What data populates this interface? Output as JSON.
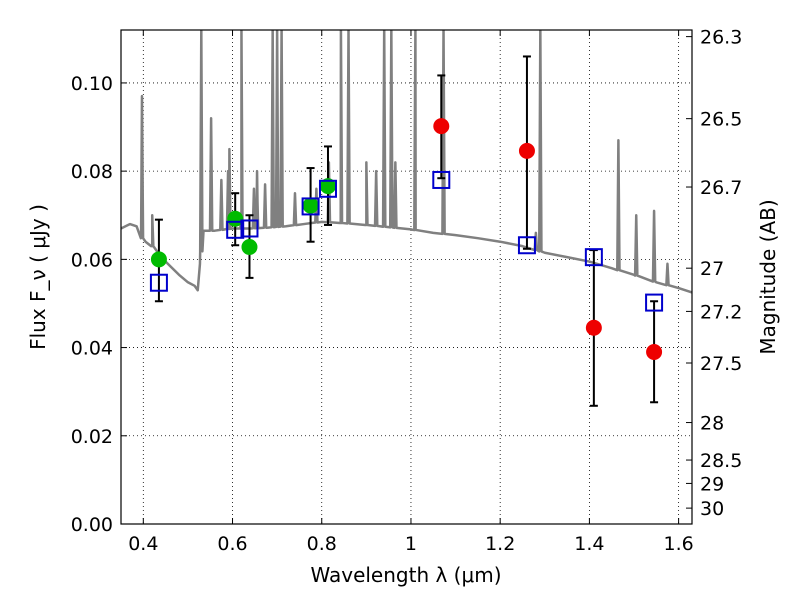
{
  "chart_data": {
    "type": "scatter",
    "xlabel": "Wavelength  λ (μm)",
    "ylabel": "Flux  F_ν  ( μJy )",
    "ylabel_right": "Magnitude (AB)",
    "xlim": [
      0.35,
      1.63
    ],
    "ylim": [
      0.0,
      0.112
    ],
    "grid": true,
    "x_ticks": [
      0.4,
      0.6,
      0.8,
      1.0,
      1.2,
      1.4,
      1.6
    ],
    "x_tick_labels": [
      "0.4",
      "0.6",
      "0.8",
      "1",
      "1.2",
      "1.4",
      "1.6"
    ],
    "y_ticks": [
      0.0,
      0.02,
      0.04,
      0.06,
      0.08,
      0.1
    ],
    "y_tick_labels": [
      "0.00",
      "0.02",
      "0.04",
      "0.06",
      "0.08",
      "0.10"
    ],
    "right_ticks": [
      {
        "label": "26.3",
        "flux": 0.1105
      },
      {
        "label": "26.5",
        "flux": 0.0919
      },
      {
        "label": "26.7",
        "flux": 0.0764
      },
      {
        "label": "27",
        "flux": 0.058
      },
      {
        "label": "27.2",
        "flux": 0.0482
      },
      {
        "label": "27.5",
        "flux": 0.0365
      },
      {
        "label": "28",
        "flux": 0.023
      },
      {
        "label": "28.5",
        "flux": 0.0145
      },
      {
        "label": "29",
        "flux": 0.0092
      },
      {
        "label": "30",
        "flux": 0.0036
      }
    ],
    "series": [
      {
        "marker": "circle",
        "color": "#00bb00",
        "points": [
          {
            "x": 0.435,
            "y": 0.06,
            "err_lo": 0.0095,
            "err_hi": 0.009
          },
          {
            "x": 0.606,
            "y": 0.0692,
            "err_lo": 0.006,
            "err_hi": 0.0058
          },
          {
            "x": 0.638,
            "y": 0.0628,
            "err_lo": 0.007,
            "err_hi": 0.0072
          },
          {
            "x": 0.775,
            "y": 0.0722,
            "err_lo": 0.0082,
            "err_hi": 0.0085
          },
          {
            "x": 0.814,
            "y": 0.0766,
            "err_lo": 0.0088,
            "err_hi": 0.009
          }
        ]
      },
      {
        "marker": "circle",
        "color": "#ee0000",
        "points": [
          {
            "x": 1.068,
            "y": 0.0902,
            "err_lo": 0.0118,
            "err_hi": 0.0115
          },
          {
            "x": 1.26,
            "y": 0.0846,
            "err_lo": 0.0222,
            "err_hi": 0.0214
          },
          {
            "x": 1.41,
            "y": 0.0445,
            "err_lo": 0.0177,
            "err_hi": 0.0176
          },
          {
            "x": 1.545,
            "y": 0.039,
            "err_lo": 0.0114,
            "err_hi": 0.0115
          }
        ]
      },
      {
        "marker": "open-square",
        "color": "#0000cc",
        "points": [
          {
            "x": 0.435,
            "y": 0.0547
          },
          {
            "x": 0.606,
            "y": 0.0667
          },
          {
            "x": 0.638,
            "y": 0.067
          },
          {
            "x": 0.775,
            "y": 0.072
          },
          {
            "x": 0.814,
            "y": 0.076
          },
          {
            "x": 1.068,
            "y": 0.078
          },
          {
            "x": 1.26,
            "y": 0.0632
          },
          {
            "x": 1.41,
            "y": 0.0605
          },
          {
            "x": 1.545,
            "y": 0.0502
          }
        ]
      },
      {
        "type": "line",
        "color": "#808080",
        "continuum": [
          [
            0.35,
            0.067
          ],
          [
            0.37,
            0.068
          ],
          [
            0.385,
            0.0675
          ],
          [
            0.395,
            0.065
          ],
          [
            0.405,
            0.064
          ],
          [
            0.42,
            0.063
          ],
          [
            0.44,
            0.0605
          ],
          [
            0.46,
            0.0585
          ],
          [
            0.48,
            0.0565
          ],
          [
            0.5,
            0.0548
          ],
          [
            0.515,
            0.054
          ],
          [
            0.522,
            0.053
          ],
          [
            0.527,
            0.059
          ],
          [
            0.535,
            0.0665
          ],
          [
            0.56,
            0.0665
          ],
          [
            0.6,
            0.067
          ],
          [
            0.64,
            0.067
          ],
          [
            0.68,
            0.0672
          ],
          [
            0.72,
            0.0675
          ],
          [
            0.76,
            0.068
          ],
          [
            0.8,
            0.0685
          ],
          [
            0.85,
            0.0682
          ],
          [
            0.9,
            0.0678
          ],
          [
            0.95,
            0.0673
          ],
          [
            1.0,
            0.0668
          ],
          [
            1.05,
            0.066
          ],
          [
            1.1,
            0.0655
          ],
          [
            1.15,
            0.0648
          ],
          [
            1.2,
            0.064
          ],
          [
            1.25,
            0.063
          ],
          [
            1.3,
            0.0615
          ],
          [
            1.35,
            0.0605
          ],
          [
            1.4,
            0.0595
          ],
          [
            1.45,
            0.058
          ],
          [
            1.5,
            0.0565
          ],
          [
            1.55,
            0.0548
          ],
          [
            1.6,
            0.0535
          ],
          [
            1.63,
            0.0525
          ]
        ],
        "emission_lines": [
          [
            0.397,
            0.097
          ],
          [
            0.42,
            0.07
          ],
          [
            0.552,
            0.092
          ],
          [
            0.575,
            0.078
          ],
          [
            0.59,
            0.08
          ],
          [
            0.593,
            0.085
          ],
          [
            0.62,
            0.071
          ],
          [
            0.648,
            0.076
          ],
          [
            0.655,
            0.08
          ],
          [
            0.656,
            0.073
          ],
          [
            0.673,
            0.077
          ],
          [
            0.74,
            0.075
          ],
          [
            0.788,
            0.076
          ],
          [
            0.816,
            0.082
          ],
          [
            0.845,
            0.078
          ],
          [
            0.9,
            0.082
          ],
          [
            0.922,
            0.08
          ],
          [
            0.965,
            0.082
          ],
          [
            1.008,
            0.079
          ],
          [
            1.28,
            0.066
          ],
          [
            1.465,
            0.087
          ],
          [
            1.505,
            0.07
          ],
          [
            1.545,
            0.071
          ],
          [
            1.575,
            0.059
          ]
        ],
        "offscale_lines": [
          0.53,
          0.62,
          0.69,
          0.7,
          0.71,
          0.843,
          0.86,
          0.94,
          0.956,
          1.01,
          1.073,
          1.29
        ]
      }
    ]
  }
}
